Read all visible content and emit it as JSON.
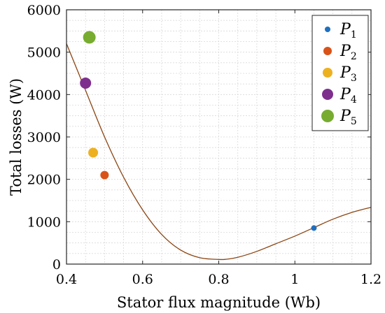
{
  "chart_data": {
    "type": "scatter",
    "title": "",
    "xlabel": "Stator flux magnitude (Wb)",
    "ylabel": "Total losses (W)",
    "xlim": [
      0.4,
      1.2
    ],
    "ylim": [
      0,
      6000
    ],
    "xticks": [
      0.4,
      0.6,
      0.8,
      1,
      1.2
    ],
    "xtick_labels": [
      "0.4",
      "0.6",
      "0.8",
      "1",
      "1.2"
    ],
    "yticks": [
      0,
      1000,
      2000,
      3000,
      4000,
      5000,
      6000
    ],
    "ytick_labels": [
      "0",
      "1000",
      "2000",
      "3000",
      "4000",
      "5000",
      "6000"
    ],
    "grid": true,
    "legend_position": "top-right",
    "curve": {
      "color": "#8B4513",
      "x": [
        0.4,
        0.45,
        0.5,
        0.55,
        0.6,
        0.65,
        0.7,
        0.75,
        0.8,
        0.82,
        0.85,
        0.9,
        0.95,
        1.0,
        1.05,
        1.1,
        1.15,
        1.2
      ],
      "y": [
        5200,
        4100,
        3000,
        2050,
        1280,
        700,
        330,
        150,
        110,
        115,
        160,
        300,
        480,
        660,
        860,
        1060,
        1220,
        1340
      ]
    },
    "series": [
      {
        "name": "P",
        "sub": "1",
        "color": "#1f6fbf",
        "size": 4,
        "x": [
          1.05
        ],
        "y": [
          850
        ]
      },
      {
        "name": "P",
        "sub": "2",
        "color": "#d95319",
        "size": 6,
        "x": [
          0.5
        ],
        "y": [
          2100
        ]
      },
      {
        "name": "P",
        "sub": "3",
        "color": "#edb120",
        "size": 7,
        "x": [
          0.47
        ],
        "y": [
          2630
        ]
      },
      {
        "name": "P",
        "sub": "4",
        "color": "#7e2f8e",
        "size": 8,
        "x": [
          0.45
        ],
        "y": [
          4270
        ]
      },
      {
        "name": "P",
        "sub": "5",
        "color": "#77ac30",
        "size": 9,
        "x": [
          0.46
        ],
        "y": [
          5350
        ]
      }
    ]
  }
}
